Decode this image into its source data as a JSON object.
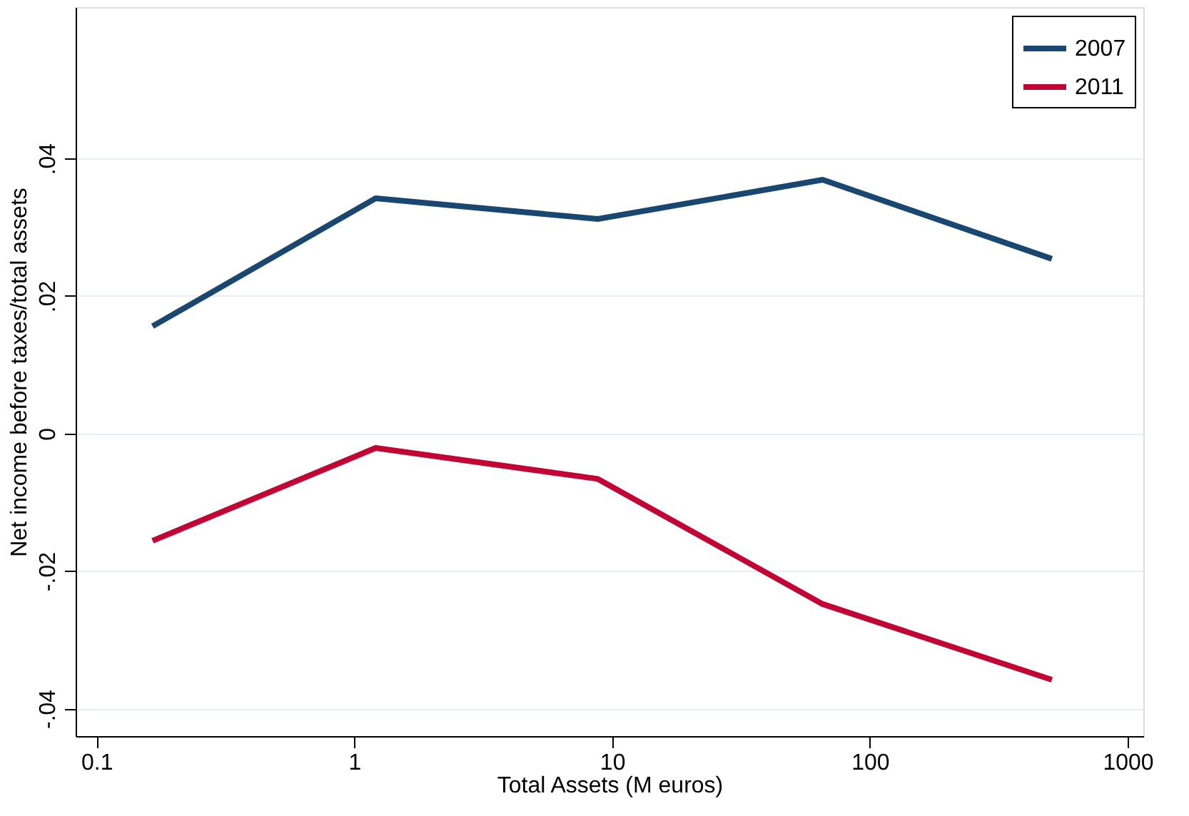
{
  "chart_data": {
    "type": "line",
    "xlabel": "Total Assets (M euros)",
    "ylabel": "Net income before taxes/total assets",
    "log": "x",
    "xlim": [
      0.083,
      1150
    ],
    "xticks": [
      0.1,
      1,
      10,
      100,
      1000
    ],
    "ylim": [
      -0.044,
      0.062
    ],
    "yticks": [
      {
        "value": -0.04,
        "label": "-.04"
      },
      {
        "value": -0.02,
        "label": "-.02"
      },
      {
        "value": 0,
        "label": "0"
      },
      {
        "value": 0.02,
        "label": ".02"
      },
      {
        "value": 0.04,
        "label": ".04"
      }
    ],
    "grid": "y",
    "legend": "top right",
    "marker": "none",
    "line_style": "solid",
    "x": [
      0.165,
      1.21,
      8.8,
      65.6,
      508
    ],
    "series": [
      {
        "name": "2007",
        "color": "#1a476f",
        "values": [
          0.0156,
          0.0342,
          0.0312,
          0.0369,
          0.0254
        ]
      },
      {
        "name": "2011",
        "color": "#c10534",
        "values": [
          -0.0156,
          -0.0021,
          -0.0066,
          -0.0248,
          -0.0358
        ]
      }
    ]
  }
}
